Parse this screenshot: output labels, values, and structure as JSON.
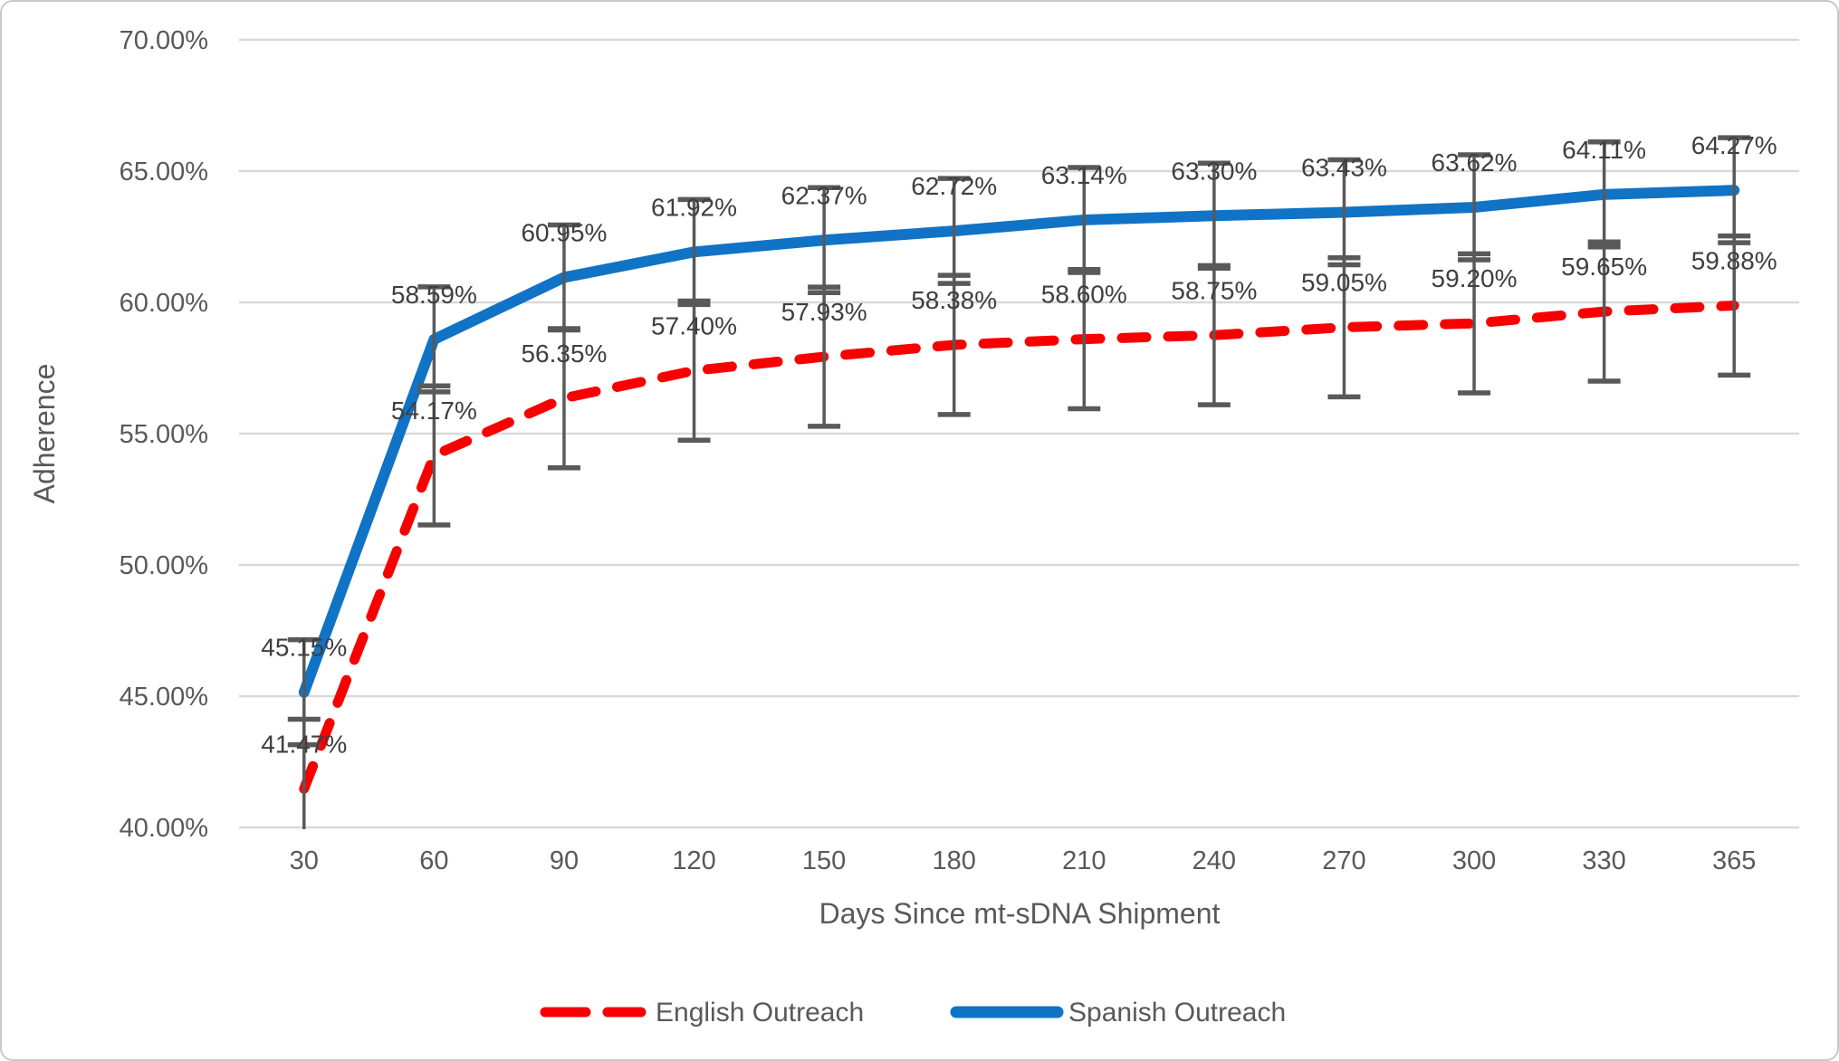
{
  "chart_data": {
    "type": "line",
    "title": "",
    "xlabel": "Days Since mt-sDNA Shipment",
    "ylabel": "Adherence",
    "x_categories": [
      "30",
      "60",
      "90",
      "120",
      "150",
      "180",
      "210",
      "240",
      "270",
      "300",
      "330",
      "365"
    ],
    "y_tick_labels": [
      "70.00%",
      "65.00%",
      "60.00%",
      "55.00%",
      "50.00%",
      "45.00%",
      "40.00%"
    ],
    "ylim": [
      40,
      70
    ],
    "y_tick_step": 5,
    "grid": true,
    "legend_position": "bottom",
    "series": [
      {
        "name": "English Outreach",
        "color": "#f80000",
        "line_style": "dashed",
        "values": [
          41.47,
          54.17,
          56.35,
          57.4,
          57.93,
          58.38,
          58.6,
          58.75,
          59.05,
          59.2,
          59.65,
          59.88
        ],
        "data_labels": [
          "41.47%",
          "54.17%",
          "56.35%",
          "57.40%",
          "57.93%",
          "58.38%",
          "58.60%",
          "58.75%",
          "59.05%",
          "59.20%",
          "59.65%",
          "59.88%"
        ],
        "error_bar": 2.65
      },
      {
        "name": "Spanish Outreach",
        "color": "#1173c5",
        "line_style": "solid",
        "values": [
          45.15,
          58.59,
          60.95,
          61.92,
          62.37,
          62.72,
          63.14,
          63.3,
          63.43,
          63.62,
          64.11,
          64.27
        ],
        "data_labels": [
          "45.15%",
          "58.59%",
          "60.95%",
          "61.92%",
          "62.37%",
          "62.72%",
          "63.14%",
          "63.30%",
          "63.43%",
          "63.62%",
          "64.11%",
          "64.27%"
        ],
        "error_bar": 2.0
      }
    ],
    "colors": {
      "grid": "#d9d9d9",
      "error_bar": "#595959",
      "axis_text": "#595959",
      "data_label_text": "#3f3f3f",
      "border": "#c9c9c9",
      "background": "#ffffff"
    }
  }
}
